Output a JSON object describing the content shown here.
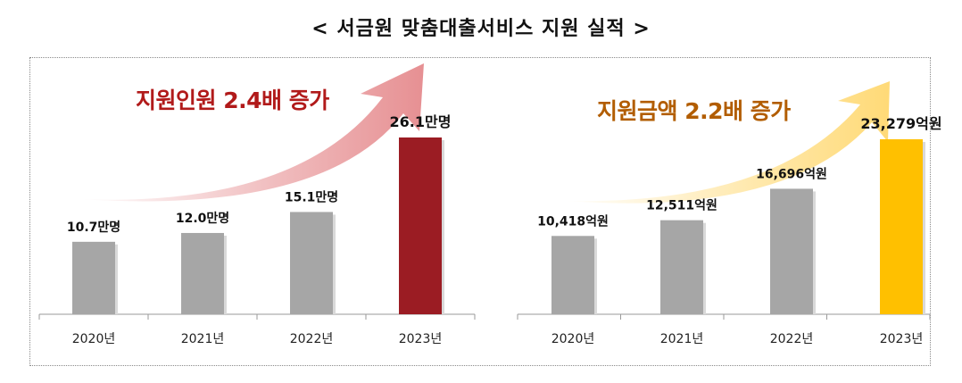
{
  "title": "< 서금원 맞춤대출서비스 지원 실적 >",
  "colors": {
    "bar": "#a6a6a6",
    "highlight_left": "#9b1c23",
    "highlight_right": "#ffc000",
    "arrow_left": "#e58a8d",
    "arrow_right": "#ffd870"
  },
  "chart_data": [
    {
      "type": "bar",
      "headline": "지원인원 2.4배 증가",
      "categories": [
        "2020년",
        "2021년",
        "2022년",
        "2023년"
      ],
      "values": [
        10.7,
        12.0,
        15.1,
        26.1
      ],
      "value_labels": [
        "10.7만명",
        "12.0만명",
        "15.1만명",
        "26.1만명"
      ],
      "unit": "만명"
    },
    {
      "type": "bar",
      "headline": "지원금액 2.2배 증가",
      "categories": [
        "2020년",
        "2021년",
        "2022년",
        "2023년"
      ],
      "values": [
        10418,
        12511,
        16696,
        23279
      ],
      "value_labels": [
        "10,418억원",
        "12,511억원",
        "16,696억원",
        "23,279억원"
      ],
      "unit": "억원"
    }
  ]
}
